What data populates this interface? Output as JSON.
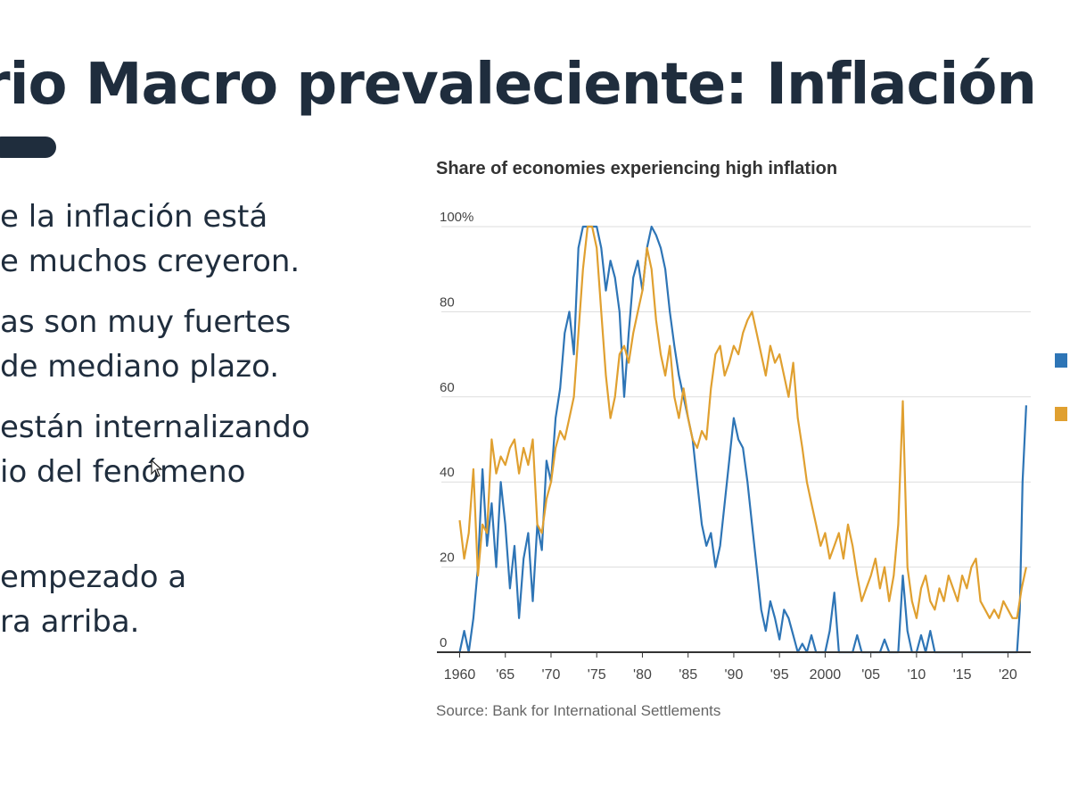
{
  "slide": {
    "title": "rio Macro prevaleciente: Inflación",
    "bullets": [
      [
        "e la inflación está",
        "e muchos creyeron."
      ],
      [
        "as son muy fuertes",
        "de mediano plazo."
      ],
      [
        "están internalizando",
        "io del fenómeno"
      ],
      [
        "empezado a",
        "ra arriba."
      ]
    ]
  },
  "chart": {
    "source": "Source: Bank for International Settlements"
  },
  "colors": {
    "title": "#1f2d3d",
    "series_blue": "#2e75b6",
    "series_orange": "#e0a030",
    "grid": "#dddddd",
    "axis": "#333333",
    "tick_text": "#444444"
  },
  "chart_data": {
    "type": "line",
    "title": "Share of economies experiencing high inflation",
    "xlabel": "",
    "ylabel": "",
    "xlim": [
      1958,
      2022.5
    ],
    "ylim": [
      0,
      100
    ],
    "x_ticks": [
      1960,
      1965,
      1970,
      1975,
      1980,
      1985,
      1990,
      1995,
      2000,
      2005,
      2010,
      2015,
      2020
    ],
    "x_tick_labels": [
      "1960",
      "'65",
      "'70",
      "'75",
      "'80",
      "'85",
      "'90",
      "'95",
      "2000",
      "'05",
      "'10",
      "'15",
      "'20"
    ],
    "y_ticks": [
      0,
      20,
      40,
      60,
      80,
      100
    ],
    "y_tick_labels": [
      "0",
      "20",
      "40",
      "60",
      "80",
      "100%"
    ],
    "grid": true,
    "legend": "right (cropped)",
    "series": [
      {
        "color": "#2e75b6",
        "points": [
          [
            1960,
            0
          ],
          [
            1960.5,
            5
          ],
          [
            1961,
            0
          ],
          [
            1961.5,
            8
          ],
          [
            1962,
            20
          ],
          [
            1962.5,
            43
          ],
          [
            1963,
            25
          ],
          [
            1963.5,
            35
          ],
          [
            1964,
            20
          ],
          [
            1964.5,
            40
          ],
          [
            1965,
            30
          ],
          [
            1965.5,
            15
          ],
          [
            1966,
            25
          ],
          [
            1966.5,
            8
          ],
          [
            1967,
            22
          ],
          [
            1967.5,
            28
          ],
          [
            1968,
            12
          ],
          [
            1968.5,
            30
          ],
          [
            1969,
            24
          ],
          [
            1969.5,
            45
          ],
          [
            1970,
            40
          ],
          [
            1970.5,
            55
          ],
          [
            1971,
            62
          ],
          [
            1971.5,
            75
          ],
          [
            1972,
            80
          ],
          [
            1972.5,
            70
          ],
          [
            1973,
            95
          ],
          [
            1973.5,
            100
          ],
          [
            1974,
            100
          ],
          [
            1974.5,
            100
          ],
          [
            1975,
            100
          ],
          [
            1975.5,
            95
          ],
          [
            1976,
            85
          ],
          [
            1976.5,
            92
          ],
          [
            1977,
            88
          ],
          [
            1977.5,
            80
          ],
          [
            1978,
            60
          ],
          [
            1978.5,
            75
          ],
          [
            1979,
            88
          ],
          [
            1979.5,
            92
          ],
          [
            1980,
            85
          ],
          [
            1980.5,
            95
          ],
          [
            1981,
            100
          ],
          [
            1981.5,
            98
          ],
          [
            1982,
            95
          ],
          [
            1982.5,
            90
          ],
          [
            1983,
            80
          ],
          [
            1983.5,
            72
          ],
          [
            1984,
            65
          ],
          [
            1984.5,
            60
          ],
          [
            1985,
            55
          ],
          [
            1985.5,
            50
          ],
          [
            1986,
            40
          ],
          [
            1986.5,
            30
          ],
          [
            1987,
            25
          ],
          [
            1987.5,
            28
          ],
          [
            1988,
            20
          ],
          [
            1988.5,
            25
          ],
          [
            1989,
            35
          ],
          [
            1989.5,
            45
          ],
          [
            1990,
            55
          ],
          [
            1990.5,
            50
          ],
          [
            1991,
            48
          ],
          [
            1991.5,
            40
          ],
          [
            1992,
            30
          ],
          [
            1992.5,
            20
          ],
          [
            1993,
            10
          ],
          [
            1993.5,
            5
          ],
          [
            1994,
            12
          ],
          [
            1994.5,
            8
          ],
          [
            1995,
            3
          ],
          [
            1995.5,
            10
          ],
          [
            1996,
            8
          ],
          [
            1996.5,
            4
          ],
          [
            1997,
            0
          ],
          [
            1997.5,
            2
          ],
          [
            1998,
            0
          ],
          [
            1998.5,
            4
          ],
          [
            1999,
            0
          ],
          [
            2000,
            0
          ],
          [
            2000.5,
            5
          ],
          [
            2001,
            14
          ],
          [
            2001.5,
            0
          ],
          [
            2002,
            0
          ],
          [
            2003,
            0
          ],
          [
            2003.5,
            4
          ],
          [
            2004,
            0
          ],
          [
            2005,
            0
          ],
          [
            2006,
            0
          ],
          [
            2006.5,
            3
          ],
          [
            2007,
            0
          ],
          [
            2008,
            0
          ],
          [
            2008.5,
            18
          ],
          [
            2009,
            5
          ],
          [
            2009.5,
            0
          ],
          [
            2010,
            0
          ],
          [
            2010.5,
            4
          ],
          [
            2011,
            0
          ],
          [
            2011.5,
            5
          ],
          [
            2012,
            0
          ],
          [
            2013,
            0
          ],
          [
            2014,
            0
          ],
          [
            2015,
            0
          ],
          [
            2016,
            0
          ],
          [
            2017,
            0
          ],
          [
            2018,
            0
          ],
          [
            2019,
            0
          ],
          [
            2020,
            0
          ],
          [
            2021,
            0
          ],
          [
            2021.3,
            10
          ],
          [
            2021.6,
            40
          ],
          [
            2022,
            58
          ]
        ]
      },
      {
        "color": "#e0a030",
        "points": [
          [
            1960,
            31
          ],
          [
            1960.5,
            22
          ],
          [
            1961,
            28
          ],
          [
            1961.5,
            43
          ],
          [
            1962,
            18
          ],
          [
            1962.5,
            30
          ],
          [
            1963,
            28
          ],
          [
            1963.5,
            50
          ],
          [
            1964,
            42
          ],
          [
            1964.5,
            46
          ],
          [
            1965,
            44
          ],
          [
            1965.5,
            48
          ],
          [
            1966,
            50
          ],
          [
            1966.5,
            42
          ],
          [
            1967,
            48
          ],
          [
            1967.5,
            44
          ],
          [
            1968,
            50
          ],
          [
            1968.5,
            30
          ],
          [
            1969,
            28
          ],
          [
            1969.5,
            36
          ],
          [
            1970,
            40
          ],
          [
            1970.5,
            48
          ],
          [
            1971,
            52
          ],
          [
            1971.5,
            50
          ],
          [
            1972,
            55
          ],
          [
            1972.5,
            60
          ],
          [
            1973,
            75
          ],
          [
            1973.5,
            90
          ],
          [
            1974,
            100
          ],
          [
            1974.5,
            100
          ],
          [
            1975,
            95
          ],
          [
            1975.5,
            80
          ],
          [
            1976,
            65
          ],
          [
            1976.5,
            55
          ],
          [
            1977,
            60
          ],
          [
            1977.5,
            70
          ],
          [
            1978,
            72
          ],
          [
            1978.5,
            68
          ],
          [
            1979,
            75
          ],
          [
            1979.5,
            80
          ],
          [
            1980,
            85
          ],
          [
            1980.5,
            95
          ],
          [
            1981,
            90
          ],
          [
            1981.5,
            78
          ],
          [
            1982,
            70
          ],
          [
            1982.5,
            65
          ],
          [
            1983,
            72
          ],
          [
            1983.5,
            60
          ],
          [
            1984,
            55
          ],
          [
            1984.5,
            62
          ],
          [
            1985,
            55
          ],
          [
            1985.5,
            50
          ],
          [
            1986,
            48
          ],
          [
            1986.5,
            52
          ],
          [
            1987,
            50
          ],
          [
            1987.5,
            62
          ],
          [
            1988,
            70
          ],
          [
            1988.5,
            72
          ],
          [
            1989,
            65
          ],
          [
            1989.5,
            68
          ],
          [
            1990,
            72
          ],
          [
            1990.5,
            70
          ],
          [
            1991,
            75
          ],
          [
            1991.5,
            78
          ],
          [
            1992,
            80
          ],
          [
            1992.5,
            75
          ],
          [
            1993,
            70
          ],
          [
            1993.5,
            65
          ],
          [
            1994,
            72
          ],
          [
            1994.5,
            68
          ],
          [
            1995,
            70
          ],
          [
            1995.5,
            65
          ],
          [
            1996,
            60
          ],
          [
            1996.5,
            68
          ],
          [
            1997,
            55
          ],
          [
            1997.5,
            48
          ],
          [
            1998,
            40
          ],
          [
            1998.5,
            35
          ],
          [
            1999,
            30
          ],
          [
            1999.5,
            25
          ],
          [
            2000,
            28
          ],
          [
            2000.5,
            22
          ],
          [
            2001,
            25
          ],
          [
            2001.5,
            28
          ],
          [
            2002,
            22
          ],
          [
            2002.5,
            30
          ],
          [
            2003,
            25
          ],
          [
            2003.5,
            18
          ],
          [
            2004,
            12
          ],
          [
            2004.5,
            15
          ],
          [
            2005,
            18
          ],
          [
            2005.5,
            22
          ],
          [
            2006,
            15
          ],
          [
            2006.5,
            20
          ],
          [
            2007,
            12
          ],
          [
            2007.5,
            18
          ],
          [
            2008,
            30
          ],
          [
            2008.5,
            59
          ],
          [
            2009,
            20
          ],
          [
            2009.5,
            12
          ],
          [
            2010,
            8
          ],
          [
            2010.5,
            15
          ],
          [
            2011,
            18
          ],
          [
            2011.5,
            12
          ],
          [
            2012,
            10
          ],
          [
            2012.5,
            15
          ],
          [
            2013,
            12
          ],
          [
            2013.5,
            18
          ],
          [
            2014,
            15
          ],
          [
            2014.5,
            12
          ],
          [
            2015,
            18
          ],
          [
            2015.5,
            15
          ],
          [
            2016,
            20
          ],
          [
            2016.5,
            22
          ],
          [
            2017,
            12
          ],
          [
            2017.5,
            10
          ],
          [
            2018,
            8
          ],
          [
            2018.5,
            10
          ],
          [
            2019,
            8
          ],
          [
            2019.5,
            12
          ],
          [
            2020,
            10
          ],
          [
            2020.5,
            8
          ],
          [
            2021,
            8
          ],
          [
            2021.5,
            15
          ],
          [
            2022,
            20
          ]
        ]
      }
    ]
  }
}
